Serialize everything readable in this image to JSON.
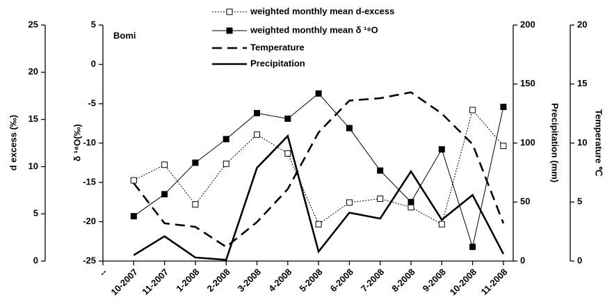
{
  "chart_data": {
    "type": "line",
    "annotation": "Bomi",
    "ylabel": "d excess (‰)",
    "y2label": "δ ¹⁸O(‰)",
    "y3label": "Precipitation (mm)",
    "y4label": "Temperature ℃",
    "categories": [
      "--",
      "10-2007",
      "11-2007",
      "1-2008",
      "2-2008",
      "3-2008",
      "4-2008",
      "5-2008",
      "6-2008",
      "7-2008",
      "8-2008",
      "9-2008",
      "10-2008",
      "11-2008"
    ],
    "ylim": [
      0,
      25
    ],
    "yticks": [
      0,
      5,
      10,
      15,
      20,
      25
    ],
    "y2lim": [
      -25,
      5
    ],
    "y2ticks": [
      -25,
      -20,
      -15,
      -10,
      -5,
      0,
      5
    ],
    "y3lim": [
      0,
      200
    ],
    "y3ticks": [
      0,
      50,
      100,
      150,
      200
    ],
    "y4lim": [
      0,
      20
    ],
    "y4ticks": [
      0,
      5,
      10,
      15,
      20
    ],
    "series": [
      {
        "name": "weighted monthly mean d-excess",
        "color": "#000000",
        "dash": "dotted",
        "marker": "open-square",
        "axis": "y",
        "values": [
          null,
          8.55,
          10.2,
          6.0,
          10.3,
          13.4,
          11.4,
          3.9,
          6.2,
          6.6,
          5.7,
          3.9,
          16.0,
          12.2
        ]
      },
      {
        "name": "weighted monthly mean δ ¹⁸O",
        "color": "#000000",
        "dash": "solid",
        "marker": "filled-square",
        "axis": "y2",
        "values": [
          null,
          -19.3,
          -16.5,
          -12.5,
          -9.5,
          -6.2,
          -6.9,
          -3.7,
          -8.1,
          -13.5,
          -17.5,
          -10.8,
          -23.2,
          -5.4
        ]
      },
      {
        "name": "Temperature",
        "color": "#000000",
        "dash": "dashed",
        "axis": "y4",
        "values": [
          null,
          6.6,
          3.2,
          2.9,
          1.2,
          3.3,
          6.1,
          10.9,
          13.6,
          13.8,
          14.3,
          12.5,
          9.9,
          3.2
        ]
      },
      {
        "name": "Precipitation",
        "color": "#000000",
        "dash": "solid-thick",
        "axis": "y3",
        "values": [
          null,
          5,
          21,
          3,
          1,
          79,
          106,
          8,
          41,
          36,
          76,
          35,
          56,
          6
        ]
      }
    ]
  }
}
